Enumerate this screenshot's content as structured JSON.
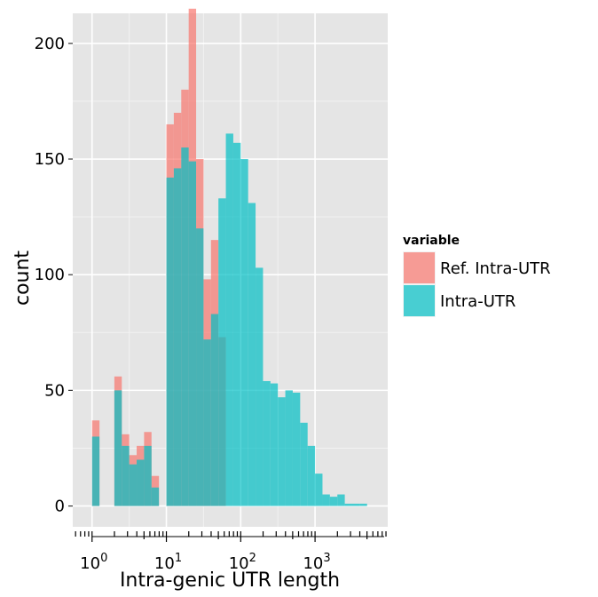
{
  "chart_data": {
    "type": "bar",
    "title": "",
    "xlabel": "Intra-genic UTR length",
    "ylabel": "count",
    "x_scale": "log10",
    "xlim": [
      0.55,
      9500
    ],
    "ylim": [
      -9,
      213
    ],
    "y_ticks": [
      0,
      50,
      100,
      150,
      200
    ],
    "x_ticks": [
      {
        "base": "10",
        "exp": "0",
        "value": 1
      },
      {
        "base": "10",
        "exp": "1",
        "value": 10
      },
      {
        "base": "10",
        "exp": "2",
        "value": 100
      },
      {
        "base": "10",
        "exp": "3",
        "value": 1000
      }
    ],
    "grid": true,
    "legend": {
      "title": "variable",
      "position": "right",
      "entries": [
        {
          "label": "Ref. Intra-UTR",
          "color": "#F8766D"
        },
        {
          "label": "Intra-UTR",
          "color": "#00BFC4"
        }
      ]
    },
    "bin_log10_start": 0,
    "bin_log10_width": 0.1,
    "series": [
      {
        "name": "Ref. Intra-UTR",
        "color": "#F8766D",
        "values": [
          37,
          0,
          0,
          56,
          31,
          22,
          26,
          32,
          13,
          0,
          165,
          170,
          180,
          215,
          150,
          98,
          115,
          73,
          0,
          0,
          0,
          0,
          0,
          0,
          0,
          0,
          0,
          0,
          0,
          0,
          0,
          0,
          0,
          0,
          0,
          0,
          0,
          0,
          0
        ]
      },
      {
        "name": "Intra-UTR",
        "color": "#00BFC4",
        "values": [
          30,
          0,
          0,
          50,
          26,
          18,
          20,
          26,
          8,
          0,
          142,
          146,
          155,
          149,
          120,
          72,
          83,
          133,
          161,
          157,
          150,
          131,
          103,
          54,
          53,
          47,
          50,
          49,
          36,
          26,
          14,
          5,
          4,
          5,
          1,
          1,
          1,
          0,
          0
        ]
      }
    ]
  }
}
